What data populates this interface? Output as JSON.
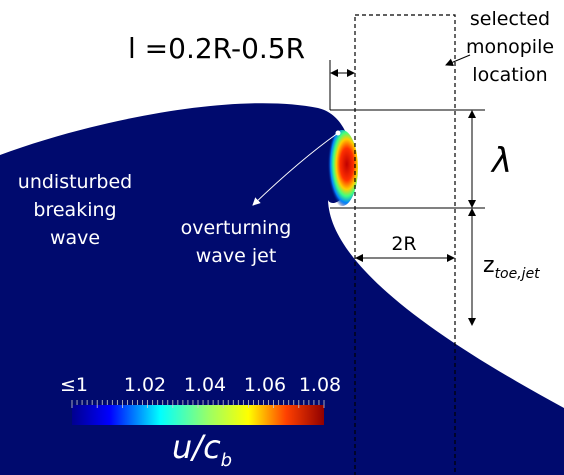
{
  "labels": {
    "gap": "l =0.2R-0.5R",
    "monopile": [
      "selected",
      "monopile",
      "location"
    ],
    "undisturbed": [
      "undisturbed",
      "breaking",
      "wave"
    ],
    "jet": [
      "overturning",
      "wave jet"
    ],
    "lambda": "λ",
    "two_r": "2R",
    "z_toe": {
      "base": "z",
      "sub": "toe,jet"
    }
  },
  "colorbar": {
    "ticks": [
      "≤1",
      "1.02",
      "1.04",
      "1.06",
      "1.08"
    ],
    "label": {
      "base": "u/c",
      "sub": "b"
    }
  }
}
